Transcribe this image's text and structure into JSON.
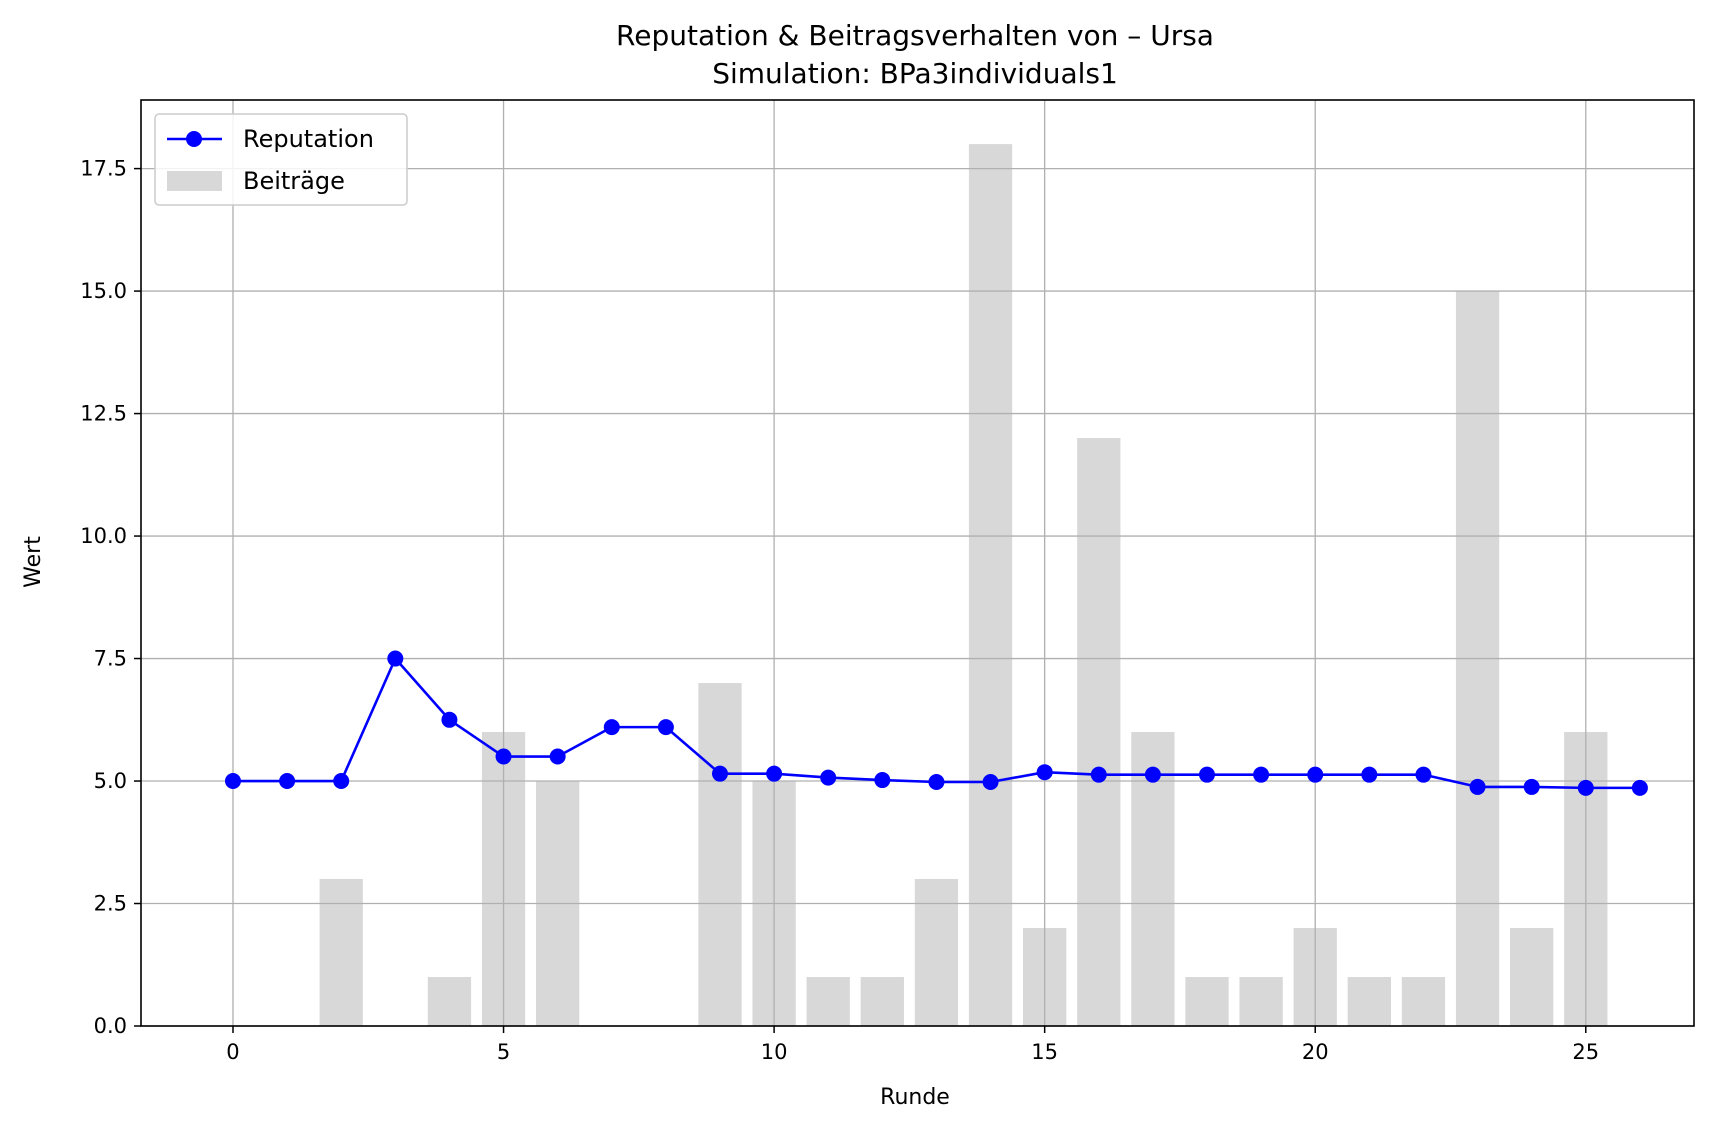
{
  "chart_data": {
    "type": "bar+line",
    "title": "Reputation & Beitragsverhalten von – Ursa",
    "subtitle": "Simulation: BPa3individuals1",
    "xlabel": "Runde",
    "ylabel": "Wert",
    "xlim": [
      -1.7,
      27.0
    ],
    "ylim": [
      0,
      18.9
    ],
    "xticks": [
      0,
      5,
      10,
      15,
      20,
      25
    ],
    "yticks": [
      0.0,
      2.5,
      5.0,
      7.5,
      10.0,
      12.5,
      15.0,
      17.5
    ],
    "grid": true,
    "legend_position": "top-left",
    "x": [
      0,
      1,
      2,
      3,
      4,
      5,
      6,
      7,
      8,
      9,
      10,
      11,
      12,
      13,
      14,
      15,
      16,
      17,
      18,
      19,
      20,
      21,
      22,
      23,
      24,
      25,
      26
    ],
    "series": [
      {
        "name": "Reputation",
        "kind": "line",
        "color": "#0000ff",
        "values": [
          5.0,
          5.0,
          5.0,
          7.5,
          6.25,
          5.5,
          5.5,
          6.1,
          6.1,
          5.15,
          5.15,
          5.07,
          5.02,
          4.98,
          4.98,
          5.18,
          5.13,
          5.13,
          5.13,
          5.13,
          5.13,
          5.13,
          5.13,
          4.88,
          4.88,
          4.86,
          4.86
        ]
      },
      {
        "name": "Beiträge",
        "kind": "bar",
        "color": "#d8d8d8",
        "values": [
          0,
          0,
          3,
          0,
          1,
          6,
          5,
          0,
          0,
          7,
          5,
          1,
          1,
          3,
          18,
          2,
          12,
          6,
          1,
          1,
          2,
          1,
          1,
          15,
          2,
          6,
          0
        ]
      }
    ]
  }
}
